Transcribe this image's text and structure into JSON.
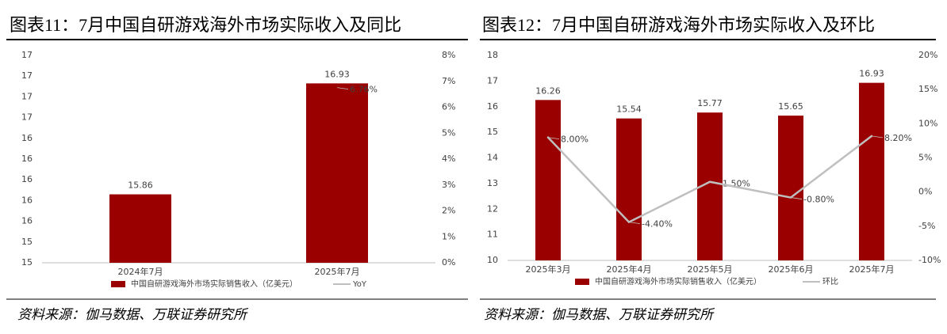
{
  "chart_data": [
    {
      "type": "bar",
      "title": "图表11：7月中国自研游戏海外市场实际收入及同比",
      "source": "资料来源：伽马数据、万联证券研究所",
      "categories": [
        "2024年7月",
        "2025年7月"
      ],
      "series": [
        {
          "name": "中国自研游戏海外市场实际销售收入（亿美元）",
          "color": "#9b0000",
          "values": [
            15.86,
            16.93
          ]
        },
        {
          "name": "YoY",
          "type": "line",
          "axis": "y2",
          "color": "#bfbfbf",
          "values": [
            null,
            6.76
          ],
          "value_labels": [
            null,
            "6.76%"
          ]
        }
      ],
      "ylim": [
        15.2,
        17.2
      ],
      "yticks": [
        {
          "value": 15.2,
          "label": "15"
        },
        {
          "value": 15.4,
          "label": "15"
        },
        {
          "value": 15.6,
          "label": "16"
        },
        {
          "value": 15.8,
          "label": "16"
        },
        {
          "value": 16.0,
          "label": "16"
        },
        {
          "value": 16.2,
          "label": "16"
        },
        {
          "value": 16.4,
          "label": "16"
        },
        {
          "value": 16.6,
          "label": "17"
        },
        {
          "value": 16.8,
          "label": "17"
        },
        {
          "value": 17.0,
          "label": "17"
        },
        {
          "value": 17.2,
          "label": "17"
        }
      ],
      "y2lim": [
        0,
        8
      ],
      "y2ticks": [
        {
          "value": 0,
          "label": "0%"
        },
        {
          "value": 1,
          "label": "1%"
        },
        {
          "value": 2,
          "label": "2%"
        },
        {
          "value": 3,
          "label": "3%"
        },
        {
          "value": 4,
          "label": "4%"
        },
        {
          "value": 5,
          "label": "5%"
        },
        {
          "value": 6,
          "label": "6%"
        },
        {
          "value": 7,
          "label": "7%"
        },
        {
          "value": 8,
          "label": "8%"
        }
      ],
      "grid": false
    },
    {
      "type": "bar",
      "title": "图表12：7月中国自研游戏海外市场实际收入及环比",
      "source": "资料来源：伽马数据、万联证券研究所",
      "categories": [
        "2025年3月",
        "2025年4月",
        "2025年5月",
        "2025年6月",
        "2025年7月"
      ],
      "series": [
        {
          "name": "中国自研游戏海外市场实际销售收入（亿美元）",
          "color": "#9b0000",
          "values": [
            16.26,
            15.54,
            15.77,
            15.65,
            16.93
          ]
        },
        {
          "name": "环比",
          "type": "line",
          "axis": "y2",
          "color": "#bfbfbf",
          "values": [
            8.0,
            -4.4,
            1.5,
            -0.8,
            8.2
          ],
          "value_labels": [
            "8.00%",
            "-4.40%",
            "1.50%",
            "-0.80%",
            "8.20%"
          ]
        }
      ],
      "ylim": [
        10,
        18
      ],
      "yticks": [
        10,
        11,
        12,
        13,
        14,
        15,
        16,
        17,
        18
      ],
      "y2lim": [
        -10,
        20
      ],
      "y2ticks": [
        {
          "value": -10,
          "label": "-10%"
        },
        {
          "value": -5,
          "label": "-5%"
        },
        {
          "value": 0,
          "label": "0%"
        },
        {
          "value": 5,
          "label": "5%"
        },
        {
          "value": 10,
          "label": "10%"
        },
        {
          "value": 15,
          "label": "15%"
        },
        {
          "value": 20,
          "label": "20%"
        }
      ],
      "grid": false
    }
  ]
}
